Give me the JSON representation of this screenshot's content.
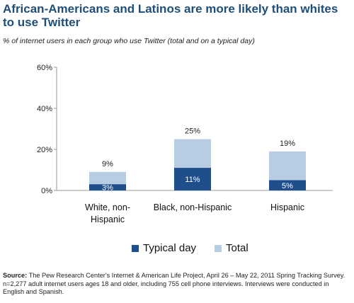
{
  "header": {
    "title": "African-Americans and Latinos are more likely than whites to use Twitter",
    "subtitle": "% of internet users in each group who use Twitter  (total and on a typical day)"
  },
  "chart_data": {
    "type": "bar",
    "stacked": true,
    "categories": [
      "White, non-Hispanic",
      "Black, non-Hispanic",
      "Hispanic"
    ],
    "category_lines": [
      [
        "White, non-",
        "Hispanic"
      ],
      [
        "Black, non-Hispanic"
      ],
      [
        "Hispanic"
      ]
    ],
    "series": [
      {
        "name": "Typical day",
        "values": [
          3,
          11,
          5
        ],
        "labels": [
          "3%",
          "11%",
          "5%"
        ],
        "color": "#1f4e8c"
      },
      {
        "name": "Total",
        "values": [
          9,
          25,
          19
        ],
        "labels": [
          "9%",
          "25%",
          "19%"
        ],
        "color": "#b8cce4"
      }
    ],
    "ylim": [
      0,
      60
    ],
    "yticks": [
      0,
      20,
      40,
      60
    ],
    "ytick_labels": [
      "0%",
      "20%",
      "40%",
      "60%"
    ],
    "legend_position": "bottom",
    "grid": false
  },
  "source": {
    "label": "Source:",
    "text": " The Pew Research Center's Internet & American Life Project, April 26 – May 22, 2011 Spring Tracking Survey. n=2,277 adult internet users ages 18 and older, including 755 cell phone interviews. Interviews were conducted  in English and Spanish."
  }
}
